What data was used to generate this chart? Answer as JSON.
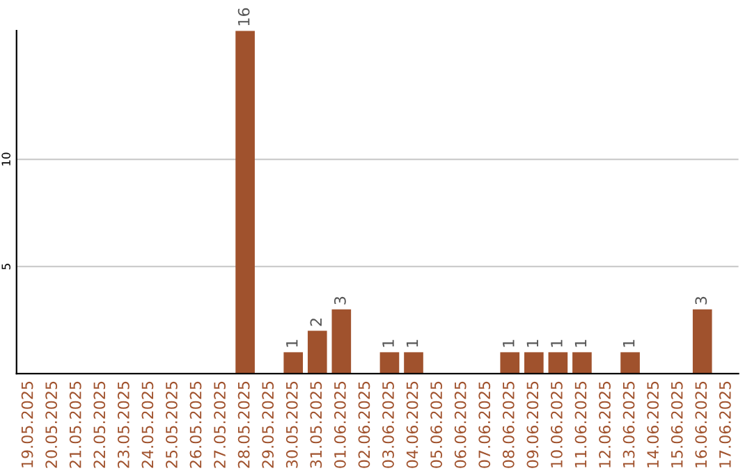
{
  "chart_data": {
    "type": "bar",
    "categories": [
      "19.05.2025",
      "20.05.2025",
      "21.05.2025",
      "22.05.2025",
      "23.05.2025",
      "24.05.2025",
      "25.05.2025",
      "26.05.2025",
      "27.05.2025",
      "28.05.2025",
      "29.05.2025",
      "30.05.2025",
      "31.05.2025",
      "01.06.2025",
      "02.06.2025",
      "03.06.2025",
      "04.06.2025",
      "05.06.2025",
      "06.06.2025",
      "07.06.2025",
      "08.06.2025",
      "09.06.2025",
      "10.06.2025",
      "11.06.2025",
      "12.06.2025",
      "13.06.2025",
      "14.06.2025",
      "15.06.2025",
      "16.06.2025",
      "17.06.2025"
    ],
    "values": [
      0,
      0,
      0,
      0,
      0,
      0,
      0,
      0,
      0,
      16,
      0,
      1,
      2,
      3,
      0,
      1,
      1,
      0,
      0,
      0,
      1,
      1,
      1,
      1,
      0,
      1,
      0,
      0,
      3,
      0
    ],
    "value_labels": [
      null,
      null,
      null,
      null,
      null,
      null,
      null,
      null,
      null,
      "16",
      null,
      "1",
      "2",
      "3",
      null,
      "1",
      "1",
      null,
      null,
      null,
      "1",
      "1",
      "1",
      "1",
      null,
      "1",
      null,
      null,
      "3",
      null
    ],
    "color": "#a0522d",
    "ylim": [
      0,
      16
    ],
    "yticks": [
      5,
      10
    ],
    "grid": "y"
  }
}
